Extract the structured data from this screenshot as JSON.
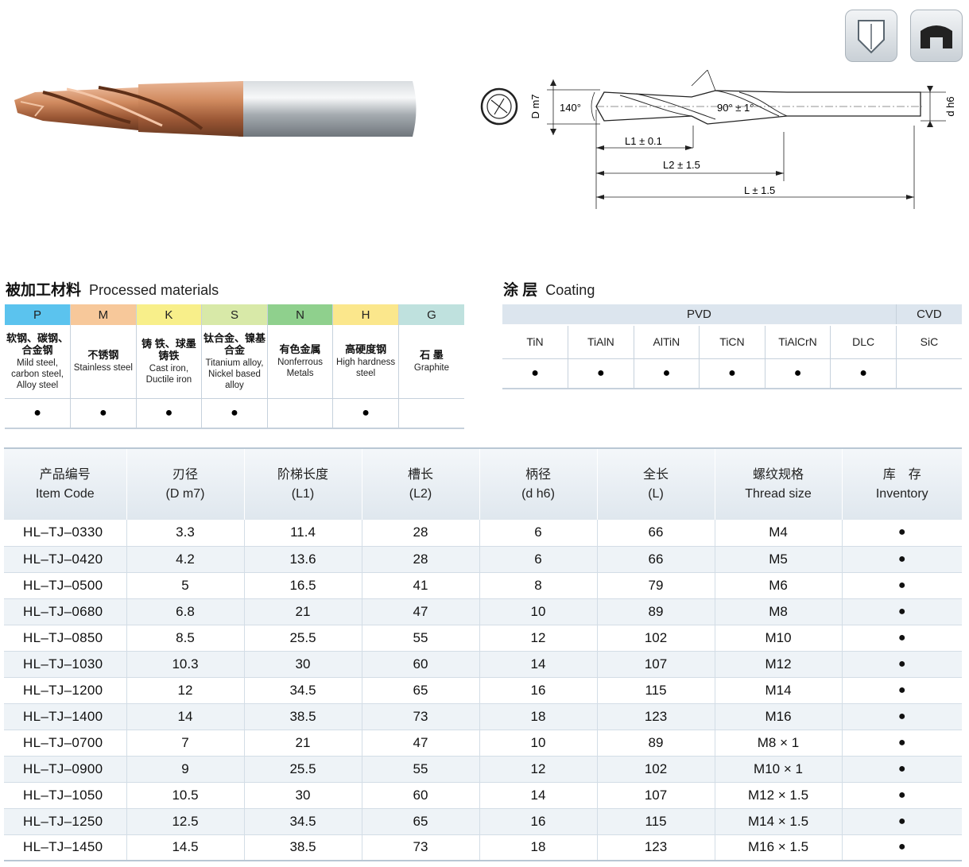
{
  "drawing": {
    "dia_label": "D m7",
    "shank_label": "d h6",
    "point_angle": "140°",
    "step_angle": "90° ± 1°",
    "l1": "L1 ± 0.1",
    "l2": "L2 ± 1.5",
    "l": "L ± 1.5"
  },
  "materials": {
    "title_cn": "被加工材料",
    "title_en": "Processed materials",
    "columns": [
      {
        "code": "P",
        "color": "#5bc3ee",
        "cn": "软钢、碳钢、合金钢",
        "en": "Mild steel, carbon steel, Alloy steel",
        "mark": "●"
      },
      {
        "code": "M",
        "color": "#f7c89a",
        "cn": "不锈钢",
        "en": "Stainless steel",
        "mark": "●"
      },
      {
        "code": "K",
        "color": "#f8ef8a",
        "cn": "铸 铁、球墨铸铁",
        "en": "Cast iron, Ductile iron",
        "mark": "●"
      },
      {
        "code": "S",
        "color": "#d8e9a8",
        "cn": "钛合金、镍基合金",
        "en": "Titanium alloy, Nickel based alloy",
        "mark": "●"
      },
      {
        "code": "N",
        "color": "#8fd08d",
        "cn": "有色金属",
        "en": "Nonferrous Metals",
        "mark": ""
      },
      {
        "code": "H",
        "color": "#fbe78c",
        "cn": "高硬度钢",
        "en": "High hardness steel",
        "mark": "●"
      },
      {
        "code": "G",
        "color": "#bfe1de",
        "cn": "石 墨",
        "en": "Graphite",
        "mark": ""
      }
    ]
  },
  "coating": {
    "title_cn": "涂 层",
    "title_en": "Coating",
    "group_pvd": "PVD",
    "group_cvd": "CVD",
    "types": [
      {
        "name": "TiN",
        "mark": "●"
      },
      {
        "name": "TiAlN",
        "mark": "●"
      },
      {
        "name": "AlTiN",
        "mark": "●"
      },
      {
        "name": "TiCN",
        "mark": "●"
      },
      {
        "name": "TiAlCrN",
        "mark": "●"
      },
      {
        "name": "DLC",
        "mark": "●"
      },
      {
        "name": "SiC",
        "mark": ""
      }
    ]
  },
  "spec": {
    "headers": [
      {
        "cn": "产品编号",
        "en": "Item Code"
      },
      {
        "cn": "刃径",
        "en": "(D m7)"
      },
      {
        "cn": "阶梯长度",
        "en": "(L1)"
      },
      {
        "cn": "槽长",
        "en": "(L2)"
      },
      {
        "cn": "柄径",
        "en": "(d h6)"
      },
      {
        "cn": "全长",
        "en": "(L)"
      },
      {
        "cn": "螺纹规格",
        "en": "Thread size"
      },
      {
        "cn": "库　存",
        "en": "Inventory"
      }
    ],
    "rows": [
      [
        "HL–TJ–0330",
        "3.3",
        "11.4",
        "28",
        "6",
        "66",
        "M4",
        "●"
      ],
      [
        "HL–TJ–0420",
        "4.2",
        "13.6",
        "28",
        "6",
        "66",
        "M5",
        "●"
      ],
      [
        "HL–TJ–0500",
        "5",
        "16.5",
        "41",
        "8",
        "79",
        "M6",
        "●"
      ],
      [
        "HL–TJ–0680",
        "6.8",
        "21",
        "47",
        "10",
        "89",
        "M8",
        "●"
      ],
      [
        "HL–TJ–0850",
        "8.5",
        "25.5",
        "55",
        "12",
        "102",
        "M10",
        "●"
      ],
      [
        "HL–TJ–1030",
        "10.3",
        "30",
        "60",
        "14",
        "107",
        "M12",
        "●"
      ],
      [
        "HL–TJ–1200",
        "12",
        "34.5",
        "65",
        "16",
        "115",
        "M14",
        "●"
      ],
      [
        "HL–TJ–1400",
        "14",
        "38.5",
        "73",
        "18",
        "123",
        "M16",
        "●"
      ],
      [
        "HL–TJ–0700",
        "7",
        "21",
        "47",
        "10",
        "89",
        "M8 × 1",
        "●"
      ],
      [
        "HL–TJ–0900",
        "9",
        "25.5",
        "55",
        "12",
        "102",
        "M10 × 1",
        "●"
      ],
      [
        "HL–TJ–1050",
        "10.5",
        "30",
        "60",
        "14",
        "107",
        "M12 × 1.5",
        "●"
      ],
      [
        "HL–TJ–1250",
        "12.5",
        "34.5",
        "65",
        "16",
        "115",
        "M14 × 1.5",
        "●"
      ],
      [
        "HL–TJ–1450",
        "14.5",
        "38.5",
        "73",
        "18",
        "123",
        "M16 × 1.5",
        "●"
      ]
    ]
  }
}
